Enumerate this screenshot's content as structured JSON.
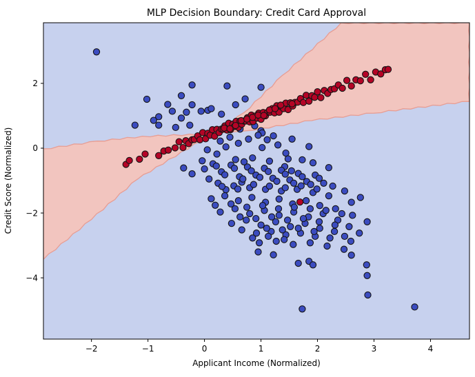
{
  "title": "MLP Decision Boundary: Credit Card Approval",
  "chart_data": {
    "type": "scatter",
    "title": "MLP Decision Boundary: Credit Card Approval",
    "xlabel": "Applicant Income (Normalized)",
    "ylabel": "Credit Score (Normalized)",
    "xlim": [
      -2.85,
      4.69
    ],
    "ylim": [
      -5.89,
      3.87
    ],
    "xticks": [
      -2,
      -1,
      0,
      1,
      2,
      3,
      4
    ],
    "yticks": [
      -4,
      -2,
      0,
      2
    ],
    "grid": false,
    "legend": "none",
    "plot_background_color": "#c7d1ee",
    "decision_regions": {
      "fill_color": "#f2c5bf",
      "edge_color": "#e79d93",
      "polygons": [
        [
          [
            -2.85,
            -0.02
          ],
          [
            -1.9,
            0.22
          ],
          [
            -1.1,
            0.37
          ],
          [
            0.15,
            0.45
          ],
          [
            -1.18,
            -0.95
          ],
          [
            -2.0,
            -2.2
          ],
          [
            -2.85,
            -3.43
          ]
        ],
        [
          [
            0.15,
            0.45
          ],
          [
            0.7,
            1.1
          ],
          [
            1.38,
            2.25
          ],
          [
            2.42,
            3.87
          ],
          [
            4.69,
            3.87
          ],
          [
            4.69,
            1.44
          ],
          [
            3.0,
            1.08
          ],
          [
            1.9,
            0.85
          ],
          [
            0.89,
            0.56
          ]
        ]
      ]
    },
    "marker": {
      "radius_px": 4.6,
      "edge_color": "#141414",
      "edge_width": 1.1
    },
    "series": [
      {
        "name": "class_blue",
        "color": "#3b4cc0",
        "points": [
          [
            -1.91,
            2.97
          ],
          [
            -0.22,
            1.95
          ],
          [
            0.4,
            1.92
          ],
          [
            -0.41,
            1.62
          ],
          [
            -0.22,
            1.34
          ],
          [
            0.55,
            1.34
          ],
          [
            -1.02,
            1.51
          ],
          [
            -0.57,
            1.14
          ],
          [
            -0.32,
            1.11
          ],
          [
            -0.06,
            1.14
          ],
          [
            0.06,
            1.17
          ],
          [
            0.12,
            1.22
          ],
          [
            -0.41,
            0.93
          ],
          [
            -0.81,
            0.97
          ],
          [
            -0.9,
            0.86
          ],
          [
            -0.26,
            0.71
          ],
          [
            -0.81,
            0.71
          ],
          [
            -0.51,
            0.64
          ],
          [
            -1.23,
            0.71
          ],
          [
            0.3,
            1.05
          ],
          [
            0.72,
            1.52
          ],
          [
            1.0,
            1.88
          ],
          [
            -0.65,
            1.35
          ],
          [
            0.63,
            0.59
          ],
          [
            0.89,
            0.69
          ],
          [
            1.0,
            0.54
          ],
          [
            1.02,
            0.47
          ],
          [
            1.11,
            0.26
          ],
          [
            0.28,
            0.22
          ],
          [
            0.45,
            0.34
          ],
          [
            0.6,
            0.15
          ],
          [
            0.78,
            0.28
          ],
          [
            0.95,
            0.4
          ],
          [
            1.22,
            0.38
          ],
          [
            1.3,
            0.1
          ],
          [
            1.55,
            0.28
          ],
          [
            1.02,
            0.02
          ],
          [
            1.44,
            -0.15
          ],
          [
            1.73,
            -0.36
          ],
          [
            1.42,
            -0.57
          ],
          [
            1.54,
            -0.7
          ],
          [
            0.05,
            -0.05
          ],
          [
            0.22,
            -0.18
          ],
          [
            0.38,
            0.04
          ],
          [
            1.85,
            0.05
          ],
          [
            -0.37,
            -0.61
          ],
          [
            -0.22,
            -0.79
          ],
          [
            -0.04,
            -0.39
          ],
          [
            0.0,
            -0.64
          ],
          [
            0.15,
            -0.48
          ],
          [
            0.3,
            -0.73
          ],
          [
            0.47,
            -0.52
          ],
          [
            0.62,
            -0.88
          ],
          [
            0.76,
            -0.58
          ],
          [
            0.91,
            -0.83
          ],
          [
            1.06,
            -0.62
          ],
          [
            1.21,
            -0.93
          ],
          [
            1.36,
            -0.68
          ],
          [
            1.51,
            -0.98
          ],
          [
            1.66,
            -0.78
          ],
          [
            1.81,
            -1.03
          ],
          [
            1.96,
            -0.83
          ],
          [
            2.11,
            -1.08
          ],
          [
            0.55,
            -0.35
          ],
          [
            0.7,
            -0.42
          ],
          [
            0.85,
            -0.3
          ],
          [
            1.15,
            -0.4
          ],
          [
            1.48,
            -0.33
          ],
          [
            1.92,
            -0.45
          ],
          [
            2.2,
            -0.6
          ],
          [
            0.08,
            -0.95
          ],
          [
            0.24,
            -1.08
          ],
          [
            0.52,
            -1.16
          ],
          [
            0.8,
            -1.22
          ],
          [
            1.08,
            -1.27
          ],
          [
            1.36,
            -1.32
          ],
          [
            1.64,
            -1.27
          ],
          [
            1.92,
            -1.37
          ],
          [
            2.2,
            -1.47
          ],
          [
            2.48,
            -1.32
          ],
          [
            2.76,
            -1.52
          ],
          [
            0.38,
            -1.28
          ],
          [
            0.66,
            -1.05
          ],
          [
            0.12,
            -1.56
          ],
          [
            0.36,
            -1.47
          ],
          [
            0.6,
            -1.62
          ],
          [
            0.84,
            -1.52
          ],
          [
            1.08,
            -1.67
          ],
          [
            1.32,
            -1.57
          ],
          [
            1.56,
            -1.72
          ],
          [
            1.8,
            -1.62
          ],
          [
            2.04,
            -1.77
          ],
          [
            2.32,
            -1.87
          ],
          [
            2.6,
            -1.67
          ],
          [
            0.28,
            -1.97
          ],
          [
            0.54,
            -1.87
          ],
          [
            0.8,
            -2.02
          ],
          [
            1.06,
            -1.92
          ],
          [
            1.32,
            -2.07
          ],
          [
            1.58,
            -1.97
          ],
          [
            1.84,
            -2.12
          ],
          [
            2.1,
            -2.02
          ],
          [
            2.36,
            -2.22
          ],
          [
            2.62,
            -2.07
          ],
          [
            2.88,
            -2.27
          ],
          [
            0.48,
            -2.32
          ],
          [
            0.74,
            -2.22
          ],
          [
            1.0,
            -2.37
          ],
          [
            1.26,
            -2.27
          ],
          [
            1.52,
            -2.42
          ],
          [
            1.78,
            -2.32
          ],
          [
            2.04,
            -2.47
          ],
          [
            2.3,
            -2.57
          ],
          [
            2.56,
            -2.42
          ],
          [
            0.92,
            -2.62
          ],
          [
            1.18,
            -2.57
          ],
          [
            1.44,
            -2.67
          ],
          [
            1.7,
            -2.62
          ],
          [
            1.96,
            -2.72
          ],
          [
            2.22,
            -2.77
          ],
          [
            2.74,
            -2.62
          ],
          [
            0.66,
            -2.52
          ],
          [
            2.48,
            -2.72
          ],
          [
            0.97,
            -2.92
          ],
          [
            1.27,
            -2.87
          ],
          [
            1.57,
            -2.97
          ],
          [
            1.87,
            -2.92
          ],
          [
            2.17,
            -3.02
          ],
          [
            2.47,
            -3.12
          ],
          [
            0.95,
            -3.2
          ],
          [
            1.22,
            -3.29
          ],
          [
            1.66,
            -3.55
          ],
          [
            1.85,
            -3.49
          ],
          [
            1.92,
            -3.6
          ],
          [
            2.6,
            -3.3
          ],
          [
            2.87,
            -3.6
          ],
          [
            2.88,
            -3.93
          ],
          [
            2.89,
            -4.53
          ],
          [
            1.73,
            -4.96
          ],
          [
            0.21,
            -0.55
          ],
          [
            0.36,
            -0.82
          ],
          [
            0.53,
            -0.62
          ],
          [
            0.68,
            -0.95
          ],
          [
            0.83,
            -0.7
          ],
          [
            0.98,
            -0.9
          ],
          [
            1.13,
            -0.72
          ],
          [
            1.28,
            -1.02
          ],
          [
            1.43,
            -0.8
          ],
          [
            1.58,
            -1.08
          ],
          [
            1.73,
            -0.88
          ],
          [
            1.88,
            -1.12
          ],
          [
            2.03,
            -0.93
          ],
          [
            0.31,
            -1.18
          ],
          [
            0.59,
            -1.26
          ],
          [
            0.87,
            -1.12
          ],
          [
            1.15,
            -1.17
          ],
          [
            1.43,
            -1.22
          ],
          [
            1.71,
            -1.16
          ],
          [
            1.99,
            -1.26
          ],
          [
            2.27,
            -1.17
          ],
          [
            0.19,
            -1.76
          ],
          [
            0.47,
            -1.72
          ],
          [
            0.75,
            -1.82
          ],
          [
            1.03,
            -1.77
          ],
          [
            1.31,
            -1.87
          ],
          [
            1.59,
            -1.82
          ],
          [
            1.87,
            -1.87
          ],
          [
            2.15,
            -1.92
          ],
          [
            2.43,
            -2.02
          ],
          [
            0.63,
            -2.12
          ],
          [
            0.91,
            -2.17
          ],
          [
            1.19,
            -2.12
          ],
          [
            1.47,
            -2.22
          ],
          [
            1.75,
            -2.17
          ],
          [
            2.03,
            -2.27
          ],
          [
            2.31,
            -2.37
          ],
          [
            1.1,
            -2.47
          ],
          [
            1.38,
            -2.52
          ],
          [
            1.66,
            -2.47
          ],
          [
            1.94,
            -2.57
          ],
          [
            0.85,
            -2.77
          ],
          [
            1.13,
            -2.72
          ],
          [
            1.41,
            -2.82
          ],
          [
            2.59,
            -2.87
          ],
          [
            3.72,
            -4.9
          ]
        ]
      },
      {
        "name": "class_red",
        "color": "#b40426",
        "points": [
          [
            -1.39,
            -0.5
          ],
          [
            -1.33,
            -0.38
          ],
          [
            -1.15,
            -0.34
          ],
          [
            -1.05,
            -0.18
          ],
          [
            -0.81,
            -0.23
          ],
          [
            -0.72,
            -0.09
          ],
          [
            -0.64,
            -0.06
          ],
          [
            -0.52,
            0.01
          ],
          [
            -0.45,
            0.2
          ],
          [
            -0.38,
            0.02
          ],
          [
            -0.33,
            0.23
          ],
          [
            -0.28,
            0.14
          ],
          [
            -0.22,
            0.26
          ],
          [
            -0.18,
            0.27
          ],
          [
            -0.12,
            0.38
          ],
          [
            -0.08,
            0.26
          ],
          [
            -0.03,
            0.48
          ],
          [
            0.02,
            0.29
          ],
          [
            0.06,
            0.46
          ],
          [
            0.1,
            0.4
          ],
          [
            0.14,
            0.57
          ],
          [
            0.18,
            0.37
          ],
          [
            0.22,
            0.58
          ],
          [
            0.26,
            0.48
          ],
          [
            0.3,
            0.59
          ],
          [
            0.33,
            0.59
          ],
          [
            0.36,
            0.69
          ],
          [
            0.4,
            0.56
          ],
          [
            0.43,
            0.77
          ],
          [
            0.46,
            0.57
          ],
          [
            0.5,
            0.74
          ],
          [
            0.53,
            0.67
          ],
          [
            0.56,
            0.83
          ],
          [
            0.6,
            0.64
          ],
          [
            0.63,
            0.84
          ],
          [
            0.66,
            0.74
          ],
          [
            0.7,
            0.84
          ],
          [
            0.73,
            0.84
          ],
          [
            0.76,
            0.94
          ],
          [
            0.8,
            0.81
          ],
          [
            0.83,
            1.02
          ],
          [
            0.86,
            0.82
          ],
          [
            0.9,
            0.99
          ],
          [
            0.93,
            0.93
          ],
          [
            0.96,
            1.08
          ],
          [
            1.0,
            0.89
          ],
          [
            1.04,
            1.1
          ],
          [
            1.08,
            1.0
          ],
          [
            1.12,
            1.11
          ],
          [
            1.16,
            1.11
          ],
          [
            1.2,
            1.22
          ],
          [
            1.24,
            1.09
          ],
          [
            1.28,
            1.31
          ],
          [
            1.32,
            1.11
          ],
          [
            1.36,
            1.28
          ],
          [
            1.4,
            1.22
          ],
          [
            1.44,
            1.39
          ],
          [
            1.48,
            1.19
          ],
          [
            1.52,
            1.4
          ],
          [
            1.56,
            1.3
          ],
          [
            1.6,
            1.41
          ],
          [
            1.65,
            1.42
          ],
          [
            1.7,
            1.53
          ],
          [
            1.75,
            1.41
          ],
          [
            1.8,
            1.63
          ],
          [
            1.85,
            1.45
          ],
          [
            1.9,
            1.62
          ],
          [
            1.95,
            1.57
          ],
          [
            2.0,
            1.74
          ],
          [
            2.06,
            1.56
          ],
          [
            2.12,
            1.78
          ],
          [
            2.18,
            1.69
          ],
          [
            2.24,
            1.81
          ],
          [
            2.3,
            1.83
          ],
          [
            2.37,
            1.95
          ],
          [
            2.44,
            1.85
          ],
          [
            2.52,
            2.09
          ],
          [
            2.6,
            1.92
          ],
          [
            2.68,
            2.11
          ],
          [
            2.76,
            2.08
          ],
          [
            2.85,
            2.28
          ],
          [
            2.94,
            2.11
          ],
          [
            3.03,
            2.35
          ],
          [
            3.12,
            2.29
          ],
          [
            3.2,
            2.42
          ],
          [
            3.25,
            2.43
          ],
          [
            0.35,
            0.62
          ],
          [
            0.45,
            0.6
          ],
          [
            0.55,
            0.7
          ],
          [
            0.65,
            0.85
          ],
          [
            0.75,
            0.9
          ],
          [
            0.85,
            0.95
          ],
          [
            0.95,
            1.02
          ],
          [
            1.05,
            1.01
          ],
          [
            1.15,
            1.18
          ],
          [
            1.25,
            1.22
          ],
          [
            1.35,
            1.33
          ],
          [
            1.55,
            1.37
          ],
          [
            1.69,
            -1.66
          ]
        ]
      }
    ]
  }
}
